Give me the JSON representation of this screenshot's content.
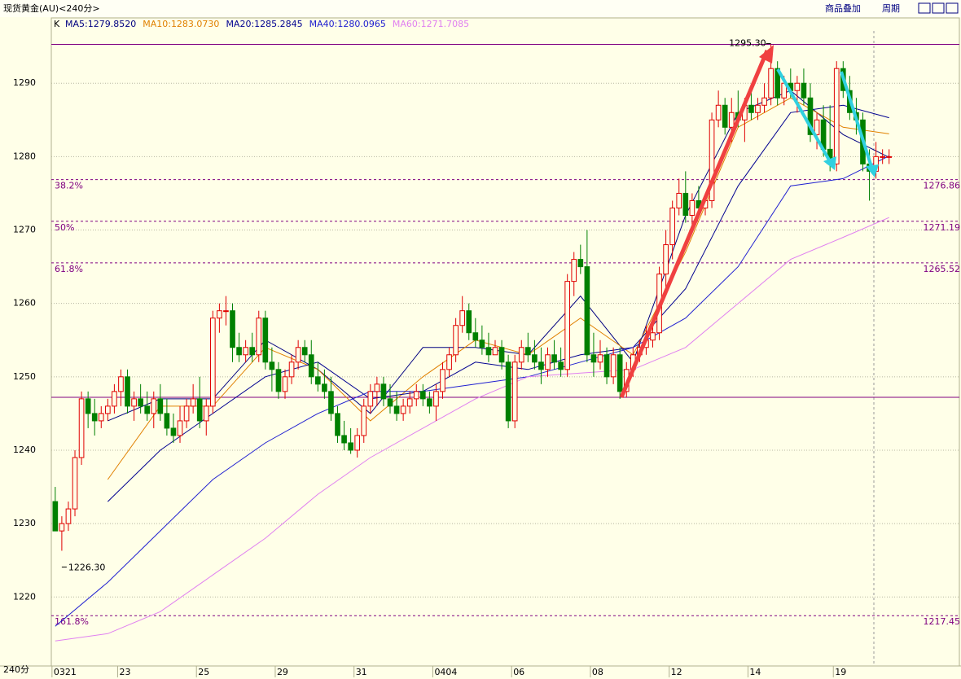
{
  "chart_data": {
    "type": "candlestick",
    "title": "现货黄金(AU)<240分>",
    "buttons": [
      "商品叠加",
      "周期"
    ],
    "legend_prefix": "K",
    "x_label": "240分",
    "ylim": [
      1210.6,
      1298.9
    ],
    "yticks": [
      1220,
      1230,
      1240,
      1250,
      1260,
      1270,
      1280,
      1290
    ],
    "grid": true,
    "xlim": [
      -0.6,
      137.7
    ],
    "xticks": [
      {
        "value": 0,
        "label": "0321"
      },
      {
        "value": 10,
        "label": "23"
      },
      {
        "value": 22,
        "label": "25"
      },
      {
        "value": 34,
        "label": "29"
      },
      {
        "value": 46,
        "label": "31"
      },
      {
        "value": 58,
        "label": "0404"
      },
      {
        "value": 70,
        "label": "06"
      },
      {
        "value": 82,
        "label": "08"
      },
      {
        "value": 94,
        "label": "12"
      },
      {
        "value": 106,
        "label": "14"
      },
      {
        "value": 119,
        "label": "19"
      }
    ],
    "up_color": "#e00000",
    "down_color": "#008000",
    "ohlc": [
      [
        1233,
        1235,
        1229,
        1229
      ],
      [
        1229,
        1231,
        1226.3,
        1230
      ],
      [
        1230,
        1233,
        1229,
        1232
      ],
      [
        1232,
        1240,
        1231,
        1239
      ],
      [
        1239,
        1248,
        1238,
        1247
      ],
      [
        1247,
        1248,
        1243,
        1245
      ],
      [
        1245,
        1247,
        1242,
        1244
      ],
      [
        1244,
        1246,
        1243,
        1245
      ],
      [
        1245,
        1247,
        1244,
        1246
      ],
      [
        1246,
        1249,
        1245,
        1248
      ],
      [
        1248,
        1251,
        1246,
        1250
      ],
      [
        1250,
        1251,
        1245,
        1246
      ],
      [
        1246,
        1248,
        1244,
        1247
      ],
      [
        1247,
        1249,
        1245,
        1246
      ],
      [
        1246,
        1248,
        1244,
        1245
      ],
      [
        1245,
        1248,
        1243,
        1247
      ],
      [
        1247,
        1249,
        1244,
        1245
      ],
      [
        1245,
        1247,
        1242,
        1243
      ],
      [
        1243,
        1245,
        1241,
        1242
      ],
      [
        1242,
        1246,
        1241,
        1244
      ],
      [
        1244,
        1247,
        1243,
        1246
      ],
      [
        1246,
        1249,
        1245,
        1247
      ],
      [
        1247,
        1250,
        1243,
        1244
      ],
      [
        1244,
        1247,
        1242,
        1246
      ],
      [
        1246,
        1259,
        1245,
        1258
      ],
      [
        1258,
        1260,
        1256,
        1259
      ],
      [
        1259,
        1261,
        1257,
        1259
      ],
      [
        1259,
        1260,
        1252,
        1254
      ],
      [
        1254,
        1256,
        1252,
        1253
      ],
      [
        1253,
        1255,
        1252,
        1254
      ],
      [
        1254,
        1256,
        1252,
        1253
      ],
      [
        1253,
        1259,
        1252,
        1258
      ],
      [
        1258,
        1259,
        1251,
        1252
      ],
      [
        1252,
        1254,
        1248,
        1251
      ],
      [
        1251,
        1252,
        1247,
        1248
      ],
      [
        1248,
        1251,
        1247,
        1250
      ],
      [
        1250,
        1253,
        1249,
        1252
      ],
      [
        1252,
        1255,
        1251,
        1254
      ],
      [
        1254,
        1255,
        1252,
        1253
      ],
      [
        1253,
        1255,
        1249,
        1250
      ],
      [
        1250,
        1252,
        1248,
        1249
      ],
      [
        1249,
        1251,
        1247,
        1248
      ],
      [
        1248,
        1250,
        1244,
        1245
      ],
      [
        1245,
        1246,
        1241,
        1242
      ],
      [
        1242,
        1244,
        1240,
        1241
      ],
      [
        1241,
        1243,
        1239.5,
        1240
      ],
      [
        1240,
        1243,
        1239,
        1242
      ],
      [
        1242,
        1247,
        1241,
        1246
      ],
      [
        1246,
        1249,
        1245,
        1248
      ],
      [
        1248,
        1250,
        1246,
        1249
      ],
      [
        1249,
        1250,
        1246,
        1247
      ],
      [
        1247,
        1249,
        1245,
        1246
      ],
      [
        1246,
        1248,
        1244,
        1245
      ],
      [
        1245,
        1247,
        1244,
        1246
      ],
      [
        1246,
        1248,
        1245,
        1247
      ],
      [
        1247,
        1249,
        1246,
        1248
      ],
      [
        1248,
        1249,
        1246,
        1247
      ],
      [
        1247,
        1248,
        1245,
        1246
      ],
      [
        1246,
        1249,
        1244,
        1248
      ],
      [
        1248,
        1252,
        1247,
        1251
      ],
      [
        1251,
        1254,
        1250,
        1253
      ],
      [
        1253,
        1258,
        1252,
        1257
      ],
      [
        1257,
        1261,
        1256,
        1259
      ],
      [
        1259,
        1260,
        1255,
        1256
      ],
      [
        1256,
        1258,
        1254,
        1255
      ],
      [
        1255,
        1257,
        1253,
        1254
      ],
      [
        1254,
        1256,
        1252,
        1253
      ],
      [
        1253,
        1255,
        1253,
        1254
      ],
      [
        1254,
        1255,
        1251,
        1252
      ],
      [
        1252,
        1253,
        1243,
        1244
      ],
      [
        1244,
        1253,
        1243,
        1252
      ],
      [
        1252,
        1255,
        1251,
        1254
      ],
      [
        1254,
        1256,
        1252,
        1253
      ],
      [
        1253,
        1255,
        1251,
        1252
      ],
      [
        1252,
        1254,
        1249,
        1251
      ],
      [
        1251,
        1254,
        1250,
        1253
      ],
      [
        1253,
        1255,
        1251,
        1252
      ],
      [
        1252,
        1254,
        1250,
        1251
      ],
      [
        1251,
        1264,
        1250,
        1263
      ],
      [
        1263,
        1267,
        1261,
        1266
      ],
      [
        1266,
        1268,
        1264,
        1265
      ],
      [
        1265,
        1270,
        1252,
        1253
      ],
      [
        1253,
        1256,
        1250,
        1252
      ],
      [
        1252,
        1255,
        1251,
        1253
      ],
      [
        1253,
        1254,
        1249,
        1250
      ],
      [
        1250,
        1254,
        1249,
        1253
      ],
      [
        1253,
        1254,
        1247,
        1248
      ],
      [
        1248,
        1252,
        1247.2,
        1251
      ],
      [
        1251,
        1254,
        1250,
        1253
      ],
      [
        1253,
        1255,
        1252,
        1254
      ],
      [
        1254,
        1257,
        1253,
        1255
      ],
      [
        1255,
        1258,
        1254,
        1256
      ],
      [
        1256,
        1265,
        1255,
        1264
      ],
      [
        1264,
        1270,
        1262,
        1268
      ],
      [
        1268,
        1274,
        1266,
        1273
      ],
      [
        1273,
        1277,
        1272,
        1275
      ],
      [
        1275,
        1278,
        1271,
        1272
      ],
      [
        1272,
        1275,
        1270,
        1274
      ],
      [
        1274,
        1276,
        1272,
        1273
      ],
      [
        1273,
        1275,
        1272,
        1274
      ],
      [
        1274,
        1286,
        1273,
        1285
      ],
      [
        1285,
        1289,
        1284,
        1287
      ],
      [
        1287,
        1288,
        1283,
        1284
      ],
      [
        1284,
        1288,
        1282,
        1286
      ],
      [
        1286,
        1289,
        1284,
        1285
      ],
      [
        1285,
        1288,
        1282,
        1287
      ],
      [
        1287,
        1289,
        1285,
        1286
      ],
      [
        1286,
        1288,
        1285,
        1287
      ],
      [
        1287,
        1290,
        1286,
        1288
      ],
      [
        1288,
        1295.3,
        1287,
        1292
      ],
      [
        1292,
        1293,
        1287,
        1288
      ],
      [
        1288,
        1291,
        1287,
        1290
      ],
      [
        1290,
        1292,
        1288,
        1289
      ],
      [
        1289,
        1291,
        1286,
        1290
      ],
      [
        1290,
        1292,
        1287,
        1288
      ],
      [
        1288,
        1290,
        1282,
        1283
      ],
      [
        1283,
        1286,
        1281,
        1285
      ],
      [
        1285,
        1287,
        1280,
        1281
      ],
      [
        1281,
        1287,
        1278,
        1279
      ],
      [
        1279,
        1293,
        1278,
        1292
      ],
      [
        1292,
        1293,
        1288,
        1289
      ],
      [
        1289,
        1291,
        1285,
        1286
      ],
      [
        1286,
        1288,
        1283,
        1285
      ],
      [
        1285,
        1286,
        1278,
        1279
      ],
      [
        1279,
        1281,
        1274,
        1278
      ],
      [
        1278,
        1282,
        1277,
        1280
      ],
      [
        1280,
        1281,
        1279,
        1280
      ],
      [
        1280,
        1281,
        1279,
        1280
      ]
    ],
    "ma_x": [
      0,
      8,
      16,
      24,
      32,
      40,
      48,
      56,
      64,
      72,
      80,
      88,
      96,
      104,
      112,
      120,
      127
    ],
    "series": [
      {
        "name": "MA5:1279.8520",
        "color": "#000080",
        "values": [
          null,
          1244,
          1247,
          1247,
          1255,
          1251,
          1245,
          1254,
          1254,
          1253,
          1261,
          1252,
          1272,
          1286,
          1289,
          1283,
          1279.9
        ]
      },
      {
        "name": "MA10:1283.0730",
        "color": "#e08000",
        "values": [
          null,
          1236,
          1246,
          1246,
          1254,
          1251,
          1244,
          1250,
          1255,
          1253,
          1258,
          1253,
          1267,
          1284,
          1288,
          1284,
          1283.1
        ]
      },
      {
        "name": "MA20:1285.2845",
        "color": "#000090",
        "values": [
          null,
          1233,
          1240,
          1245,
          1250,
          1252,
          1247,
          1248,
          1252,
          1251,
          1253,
          1254,
          1262,
          1276,
          1286,
          1287,
          1285.3
        ]
      },
      {
        "name": "MA40:1280.0965",
        "color": "#2020d0",
        "values": [
          1216,
          1222,
          1229,
          1236,
          1241,
          1245,
          1248,
          1248,
          1249,
          1250,
          1252,
          1254,
          1258,
          1265,
          1276,
          1277,
          1280.1
        ]
      },
      {
        "name": "MA60:1271.7085",
        "color": "#e080f0",
        "values": [
          1214,
          1215,
          1218,
          1223,
          1228,
          1234,
          1239,
          1243,
          1247,
          1250,
          1250.5,
          1251,
          1254,
          1260,
          1266,
          1269,
          1271.7
        ]
      }
    ],
    "levels": [
      {
        "name": "38.2%",
        "value": 1276.86
      },
      {
        "name": "50%",
        "value": 1271.19
      },
      {
        "name": "61.8%",
        "value": 1265.52
      },
      {
        "name": "161.8%",
        "value": 1217.45
      }
    ],
    "range_lines": [
      1295.3,
      1247.2
    ],
    "annotations": [
      {
        "text": "1295.30",
        "x": 109,
        "y": 1295.3
      },
      {
        "text": "1226.30",
        "x": 1,
        "y": 1226.3
      }
    ]
  }
}
